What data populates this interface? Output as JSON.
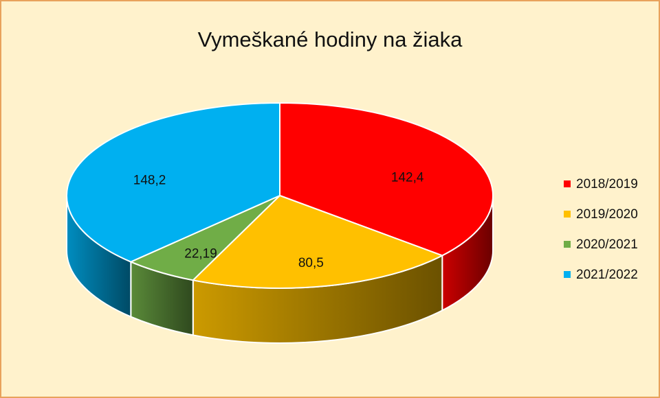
{
  "chart_data": {
    "type": "pie3d",
    "title": "Vymeškané hodiny na žiaka",
    "categories": [
      "2018/2019",
      "2019/2020",
      "2020/2021",
      "2021/2022"
    ],
    "values": [
      142.4,
      80.5,
      22.19,
      148.2
    ],
    "value_labels": [
      "142,4",
      "80,5",
      "22,19",
      "148,2"
    ],
    "colors": [
      "#ff0000",
      "#ffc000",
      "#70ad47",
      "#00b0f0"
    ],
    "legend": "right"
  }
}
